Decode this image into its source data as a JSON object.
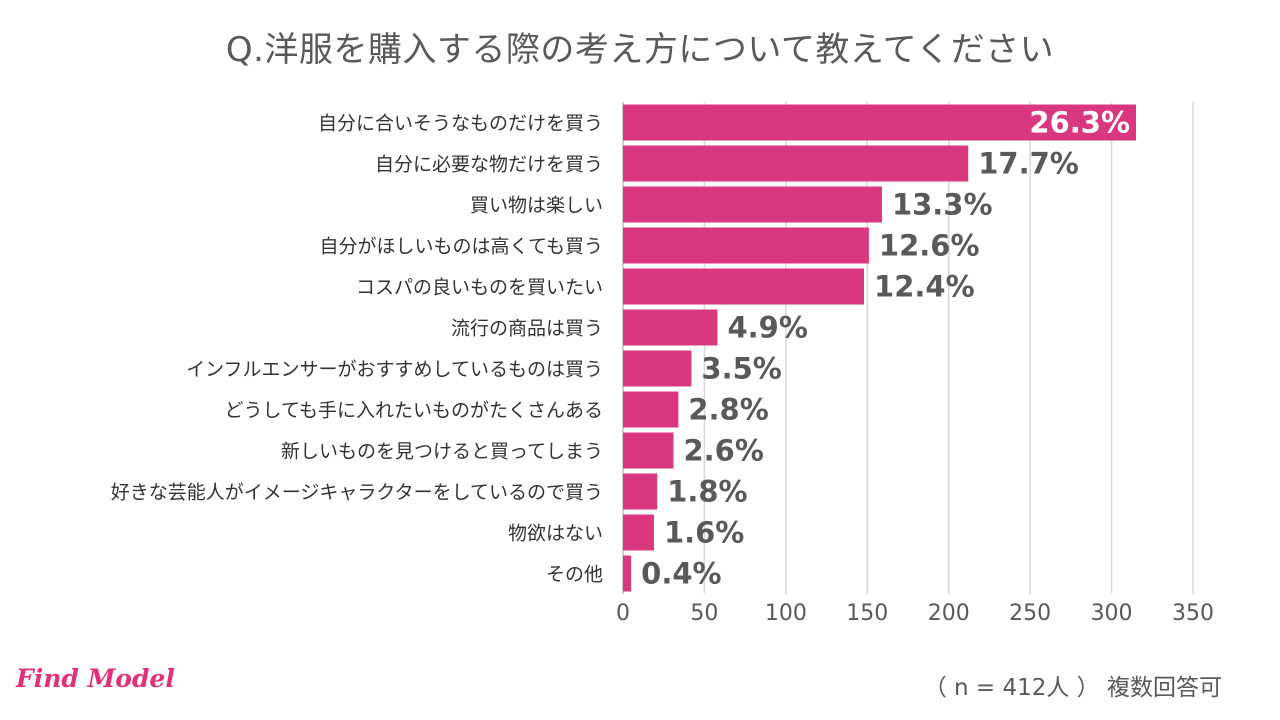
{
  "brand": {
    "logo_text": "Find Model",
    "accent": "#d9387f"
  },
  "footnote": "（ n = 412人 ） 複数回答可",
  "chart_data": {
    "type": "bar",
    "orientation": "horizontal",
    "title": "Q.洋服を購入する際の考え方について教えてください",
    "categories": [
      "自分に合いそうなものだけを買う",
      "自分に必要な物だけを買う",
      "買い物は楽しい",
      "自分がほしいものは高くても買う",
      "コスパの良いものを買いたい",
      "流行の商品は買う",
      "インフルエンサーがおすすめしているものは買う",
      "どうしても手に入れたいものがたくさんある",
      "新しいものを見つけると買ってしまう",
      "好きな芸能人がイメージキャラクターをしているので買う",
      "物欲はない",
      "その他"
    ],
    "values": [
      315,
      212,
      159,
      151,
      148,
      58,
      42,
      34,
      31,
      21,
      19,
      5
    ],
    "value_labels": [
      "26.3%",
      "17.7%",
      "13.3%",
      "12.6%",
      "12.4%",
      "4.9%",
      "3.5%",
      "2.8%",
      "2.6%",
      "1.8%",
      "1.6%",
      "0.4%"
    ],
    "xlim": [
      0,
      350
    ],
    "xticks": [
      0,
      50,
      100,
      150,
      200,
      250,
      300,
      350
    ],
    "grid": true,
    "bar_color": "#d9387f",
    "grid_color": "#d9d9d9"
  }
}
